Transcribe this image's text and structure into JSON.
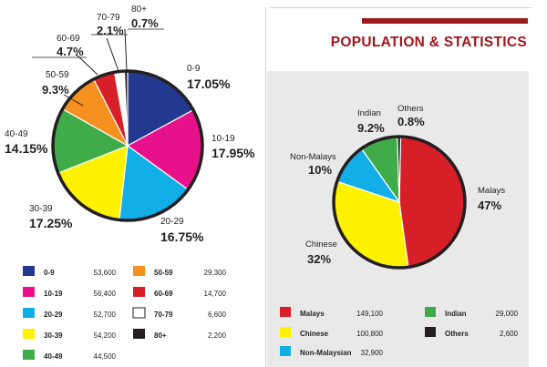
{
  "title": "POPULATION  & STATISTICS",
  "colors": {
    "accent": "#9b1b1f",
    "title": "#a5141b",
    "panel": "#e9e9e9"
  },
  "chart_data": [
    {
      "type": "pie",
      "categories": [
        "0-9",
        "10-19",
        "20-29",
        "30-39",
        "40-49",
        "50-59",
        "60-69",
        "70-79",
        "80+"
      ],
      "percent_labels": [
        "17.05%",
        "17.95%",
        "16.75%",
        "17.25%",
        "14.15%",
        "9.3%",
        "4.7%",
        "2.1%",
        "0.7%"
      ],
      "values": [
        17.05,
        17.95,
        16.75,
        17.25,
        14.15,
        9.3,
        4.7,
        2.1,
        0.7
      ],
      "legend_values": [
        "53,600",
        "56,400",
        "52,700",
        "54,200",
        "44,500",
        "29,300",
        "14,700",
        "6,600",
        "2,200"
      ],
      "colors": [
        "#23398f",
        "#e8118c",
        "#12aee7",
        "#fff200",
        "#3fac49",
        "#f6901e",
        "#d71f27",
        "#ffffff",
        "#231f20"
      ],
      "legend_placement": "bottom"
    },
    {
      "type": "pie",
      "categories": [
        "Malays",
        "Chinese",
        "Non-Malays",
        "Indian",
        "Others"
      ],
      "percent_labels": [
        "47%",
        "32%",
        "10%",
        "9.2%",
        "0.8%"
      ],
      "values": [
        47,
        32,
        10,
        9.2,
        0.8
      ],
      "legend_labels": [
        "Malays",
        "Chinese",
        "Non-Malaysian",
        "Indian",
        "Others"
      ],
      "legend_values": [
        "149,100",
        "100,800",
        "32,900",
        "29,000",
        "2,600"
      ],
      "colors": [
        "#d71f27",
        "#fff200",
        "#12aee7",
        "#3fac49",
        "#231f20"
      ],
      "legend_placement": "bottom"
    }
  ]
}
